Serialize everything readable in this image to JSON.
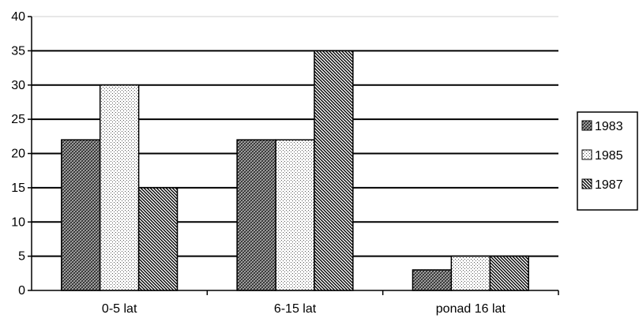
{
  "chart_data": {
    "type": "bar",
    "title": "",
    "xlabel": "",
    "ylabel": "",
    "categories": [
      "0-5 lat",
      "6-15 lat",
      "ponad 16 lat"
    ],
    "series": [
      {
        "name": "1983",
        "values": [
          22,
          22,
          3
        ],
        "pattern": "crosshatch-dark"
      },
      {
        "name": "1985",
        "values": [
          30,
          22,
          5
        ],
        "pattern": "dots"
      },
      {
        "name": "1987",
        "values": [
          15,
          35,
          5
        ],
        "pattern": "diagonal-stripes"
      }
    ],
    "ylim": [
      0,
      40
    ],
    "yticks": [
      0,
      5,
      10,
      15,
      20,
      25,
      30,
      35,
      40
    ],
    "grid": true,
    "legend_position": "right",
    "colors": {
      "bar_border": "#000000",
      "grid": "#000000",
      "background": "#ffffff"
    }
  }
}
